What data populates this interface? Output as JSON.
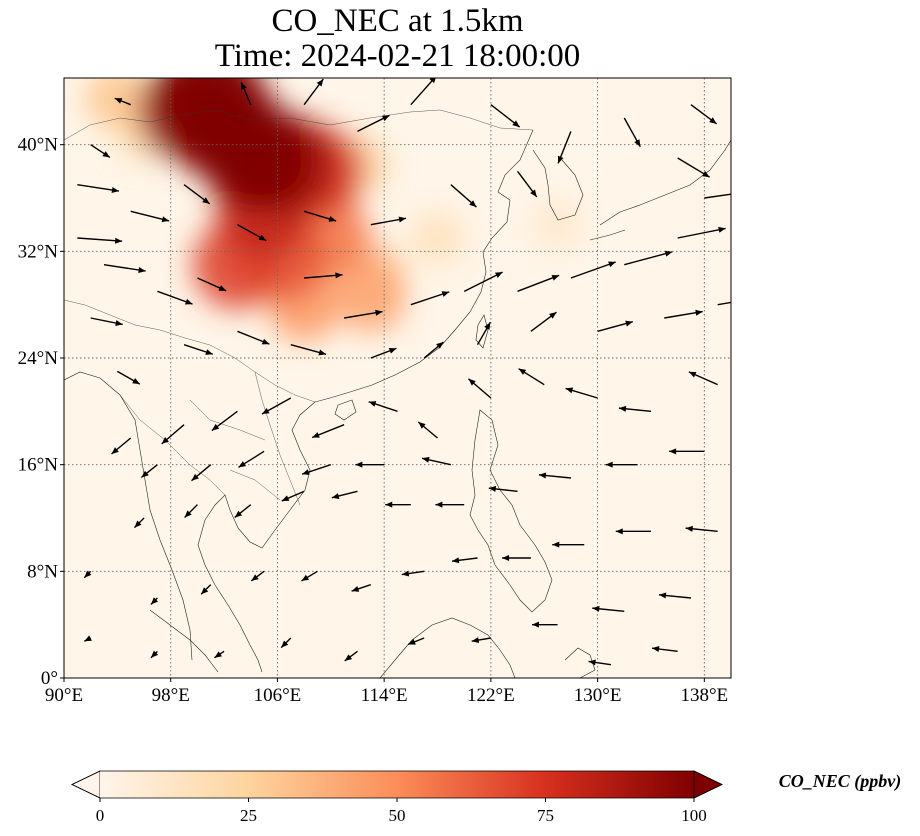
{
  "title_line1": "CO_NEC at 1.5km",
  "title_line2": "Time: 2024-02-21 18:00:00",
  "map": {
    "extent": {
      "lon_min": 90,
      "lon_max": 140,
      "lat_min": 0,
      "lat_max": 45
    },
    "x_ticks": [
      {
        "value": 90,
        "label": "90°E"
      },
      {
        "value": 98,
        "label": "98°E"
      },
      {
        "value": 106,
        "label": "106°E"
      },
      {
        "value": 114,
        "label": "114°E"
      },
      {
        "value": 122,
        "label": "122°E"
      },
      {
        "value": 130,
        "label": "130°E"
      },
      {
        "value": 138,
        "label": "138°E"
      }
    ],
    "y_ticks": [
      {
        "value": 0,
        "label": "0°"
      },
      {
        "value": 8,
        "label": "8°N"
      },
      {
        "value": 16,
        "label": "16°N"
      },
      {
        "value": 24,
        "label": "24°N"
      },
      {
        "value": 32,
        "label": "32°N"
      },
      {
        "value": 40,
        "label": "40°N"
      }
    ],
    "gridlines": "dotted",
    "background_color": "#fff5e8"
  },
  "colorbar": {
    "label": "CO_NEC (ppbv)",
    "min": 0,
    "max": 100,
    "extend": "both",
    "ticks": [
      {
        "value": 0,
        "label": "0"
      },
      {
        "value": 25,
        "label": "25"
      },
      {
        "value": 50,
        "label": "50"
      },
      {
        "value": 75,
        "label": "75"
      },
      {
        "value": 100,
        "label": "100"
      }
    ],
    "colors": [
      "#fff5eb",
      "#fdd49e",
      "#fc8d59",
      "#d7301f",
      "#7f0000"
    ]
  },
  "concentration_field": [
    {
      "lon": 99.5,
      "lat": 42.5,
      "value": 95
    },
    {
      "lon": 101.0,
      "lat": 43.5,
      "value": 100
    },
    {
      "lon": 102.5,
      "lat": 41.0,
      "value": 100
    },
    {
      "lon": 104.5,
      "lat": 39.0,
      "value": 100
    },
    {
      "lon": 106.5,
      "lat": 38.5,
      "value": 90
    },
    {
      "lon": 109.0,
      "lat": 38.0,
      "value": 75
    },
    {
      "lon": 105.0,
      "lat": 35.0,
      "value": 80
    },
    {
      "lon": 103.0,
      "lat": 31.0,
      "value": 70
    },
    {
      "lon": 106.5,
      "lat": 31.5,
      "value": 65
    },
    {
      "lon": 110.0,
      "lat": 33.0,
      "value": 55
    },
    {
      "lon": 108.0,
      "lat": 28.0,
      "value": 45
    },
    {
      "lon": 113.0,
      "lat": 30.0,
      "value": 35
    },
    {
      "lon": 113.0,
      "lat": 28.5,
      "value": 40
    },
    {
      "lon": 94.0,
      "lat": 43.5,
      "value": 30
    },
    {
      "lon": 96.0,
      "lat": 41.0,
      "value": 20
    },
    {
      "lon": 112.0,
      "lat": 38.5,
      "value": 25
    },
    {
      "lon": 118.0,
      "lat": 33.0,
      "value": 15
    },
    {
      "lon": 127.0,
      "lat": 34.0,
      "value": 10
    }
  ],
  "wind_vectors": [
    {
      "lon": 91,
      "lat": 33,
      "u": 14,
      "v": -1
    },
    {
      "lon": 93,
      "lat": 31,
      "u": 13,
      "v": -2
    },
    {
      "lon": 95,
      "lat": 35,
      "u": 12,
      "v": -3
    },
    {
      "lon": 92,
      "lat": 27,
      "u": 10,
      "v": -2
    },
    {
      "lon": 97,
      "lat": 29,
      "u": 11,
      "v": -4
    },
    {
      "lon": 99,
      "lat": 25,
      "u": 9,
      "v": -3
    },
    {
      "lon": 103,
      "lat": 26,
      "u": 10,
      "v": -4
    },
    {
      "lon": 107,
      "lat": 25,
      "u": 11,
      "v": -3
    },
    {
      "lon": 111,
      "lat": 27,
      "u": 12,
      "v": 2
    },
    {
      "lon": 116,
      "lat": 28,
      "u": 12,
      "v": 4
    },
    {
      "lon": 120,
      "lat": 29,
      "u": 12,
      "v": 6
    },
    {
      "lon": 124,
      "lat": 29,
      "u": 13,
      "v": 5
    },
    {
      "lon": 128,
      "lat": 30,
      "u": 14,
      "v": 5
    },
    {
      "lon": 132,
      "lat": 31,
      "u": 15,
      "v": 4
    },
    {
      "lon": 136,
      "lat": 33,
      "u": 15,
      "v": 3
    },
    {
      "lon": 119,
      "lat": 37,
      "u": 8,
      "v": -7
    },
    {
      "lon": 124,
      "lat": 38,
      "u": 6,
      "v": -8
    },
    {
      "lon": 128,
      "lat": 41,
      "u": -4,
      "v": -10
    },
    {
      "lon": 132,
      "lat": 42,
      "u": 5,
      "v": -9
    },
    {
      "lon": 136,
      "lat": 39,
      "u": 10,
      "v": -6
    },
    {
      "lon": 138,
      "lat": 36,
      "u": 14,
      "v": 2
    },
    {
      "lon": 112,
      "lat": 41,
      "u": 10,
      "v": 5
    },
    {
      "lon": 116,
      "lat": 43,
      "u": 8,
      "v": 9
    },
    {
      "lon": 108,
      "lat": 43,
      "u": 6,
      "v": 8
    },
    {
      "lon": 104,
      "lat": 43,
      "u": -3,
      "v": 7
    },
    {
      "lon": 95,
      "lat": 43,
      "u": -5,
      "v": 2
    },
    {
      "lon": 95,
      "lat": 18,
      "u": -6,
      "v": -5
    },
    {
      "lon": 99,
      "lat": 19,
      "u": -7,
      "v": -6
    },
    {
      "lon": 103,
      "lat": 20,
      "u": -8,
      "v": -6
    },
    {
      "lon": 107,
      "lat": 21,
      "u": -9,
      "v": -5
    },
    {
      "lon": 111,
      "lat": 19,
      "u": -10,
      "v": -4
    },
    {
      "lon": 115,
      "lat": 20,
      "u": -9,
      "v": 3
    },
    {
      "lon": 118,
      "lat": 18,
      "u": -6,
      "v": 5
    },
    {
      "lon": 122,
      "lat": 21,
      "u": -7,
      "v": 6
    },
    {
      "lon": 126,
      "lat": 22,
      "u": -8,
      "v": 5
    },
    {
      "lon": 130,
      "lat": 21,
      "u": -10,
      "v": 3
    },
    {
      "lon": 134,
      "lat": 20,
      "u": -10,
      "v": 1
    },
    {
      "lon": 138,
      "lat": 17,
      "u": -11,
      "v": 0
    },
    {
      "lon": 133,
      "lat": 16,
      "u": -10,
      "v": 0
    },
    {
      "lon": 128,
      "lat": 15,
      "u": -10,
      "v": 1
    },
    {
      "lon": 124,
      "lat": 14,
      "u": -9,
      "v": 1
    },
    {
      "lon": 120,
      "lat": 13,
      "u": -9,
      "v": 0
    },
    {
      "lon": 116,
      "lat": 13,
      "u": -8,
      "v": 0
    },
    {
      "lon": 112,
      "lat": 14,
      "u": -8,
      "v": -2
    },
    {
      "lon": 108,
      "lat": 14,
      "u": -7,
      "v": -3
    },
    {
      "lon": 104,
      "lat": 13,
      "u": -5,
      "v": -4
    },
    {
      "lon": 100,
      "lat": 13,
      "u": -4,
      "v": -4
    },
    {
      "lon": 96,
      "lat": 12,
      "u": -3,
      "v": -3
    },
    {
      "lon": 134,
      "lat": 11,
      "u": -11,
      "v": 0
    },
    {
      "lon": 129,
      "lat": 10,
      "u": -10,
      "v": 0
    },
    {
      "lon": 125,
      "lat": 9,
      "u": -9,
      "v": 0
    },
    {
      "lon": 121,
      "lat": 9,
      "u": -8,
      "v": -1
    },
    {
      "lon": 117,
      "lat": 8,
      "u": -7,
      "v": -1
    },
    {
      "lon": 113,
      "lat": 7,
      "u": -6,
      "v": -2
    },
    {
      "lon": 109,
      "lat": 8,
      "u": -5,
      "v": -3
    },
    {
      "lon": 105,
      "lat": 8,
      "u": -4,
      "v": -3
    },
    {
      "lon": 101,
      "lat": 7,
      "u": -3,
      "v": -3
    },
    {
      "lon": 97,
      "lat": 6,
      "u": -2,
      "v": -2
    },
    {
      "lon": 92,
      "lat": 8,
      "u": -2,
      "v": -2
    },
    {
      "lon": 137,
      "lat": 6,
      "u": -10,
      "v": 1
    },
    {
      "lon": 132,
      "lat": 5,
      "u": -10,
      "v": 1
    },
    {
      "lon": 127,
      "lat": 4,
      "u": -8,
      "v": 0
    },
    {
      "lon": 122,
      "lat": 3,
      "u": -6,
      "v": -1
    },
    {
      "lon": 117,
      "lat": 3,
      "u": -5,
      "v": -2
    },
    {
      "lon": 112,
      "lat": 2,
      "u": -4,
      "v": -3
    },
    {
      "lon": 107,
      "lat": 3,
      "u": -3,
      "v": -3
    },
    {
      "lon": 102,
      "lat": 2,
      "u": -3,
      "v": -2
    },
    {
      "lon": 97,
      "lat": 2,
      "u": -2,
      "v": -2
    },
    {
      "lon": 92,
      "lat": 3,
      "u": -2,
      "v": -1
    },
    {
      "lon": 136,
      "lat": 2,
      "u": -8,
      "v": 1
    },
    {
      "lon": 131,
      "lat": 1,
      "u": -7,
      "v": 1
    },
    {
      "lon": 113,
      "lat": 24,
      "u": 8,
      "v": 3
    },
    {
      "lon": 117,
      "lat": 24,
      "u": 6,
      "v": 5
    },
    {
      "lon": 121,
      "lat": 25,
      "u": 4,
      "v": 7
    },
    {
      "lon": 125,
      "lat": 26,
      "u": 8,
      "v": 6
    },
    {
      "lon": 130,
      "lat": 26,
      "u": 11,
      "v": 3
    },
    {
      "lon": 135,
      "lat": 27,
      "u": 12,
      "v": 2
    },
    {
      "lon": 139,
      "lat": 28,
      "u": 12,
      "v": 2
    },
    {
      "lon": 99,
      "lat": 37,
      "u": 8,
      "v": -6
    },
    {
      "lon": 103,
      "lat": 34,
      "u": 9,
      "v": -5
    },
    {
      "lon": 108,
      "lat": 35,
      "u": 10,
      "v": -3
    },
    {
      "lon": 113,
      "lat": 34,
      "u": 11,
      "v": 2
    },
    {
      "lon": 108,
      "lat": 30,
      "u": 12,
      "v": 1
    },
    {
      "lon": 100,
      "lat": 30,
      "u": 9,
      "v": -4
    },
    {
      "lon": 94,
      "lat": 23,
      "u": 7,
      "v": -4
    },
    {
      "lon": 91,
      "lat": 37,
      "u": 13,
      "v": -2
    },
    {
      "lon": 92,
      "lat": 40,
      "u": 6,
      "v": -4
    },
    {
      "lon": 122,
      "lat": 43,
      "u": 9,
      "v": -7
    },
    {
      "lon": 137,
      "lat": 43,
      "u": 8,
      "v": -6
    },
    {
      "lon": 97,
      "lat": 16,
      "u": -5,
      "v": -4
    },
    {
      "lon": 101,
      "lat": 16,
      "u": -6,
      "v": -5
    },
    {
      "lon": 105,
      "lat": 17,
      "u": -8,
      "v": -5
    },
    {
      "lon": 110,
      "lat": 16,
      "u": -9,
      "v": -3
    },
    {
      "lon": 114,
      "lat": 16,
      "u": -9,
      "v": 0
    },
    {
      "lon": 119,
      "lat": 16,
      "u": -9,
      "v": 2
    },
    {
      "lon": 139,
      "lat": 11,
      "u": -10,
      "v": 1
    },
    {
      "lon": 139,
      "lat": 22,
      "u": -9,
      "v": 4
    }
  ]
}
